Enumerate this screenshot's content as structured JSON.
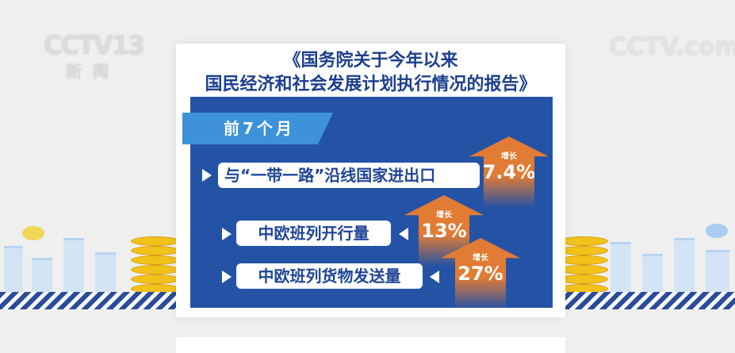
{
  "logos": {
    "left_channel": "CCTV13",
    "left_sub": "新闻",
    "right": "CCTV.com"
  },
  "title": {
    "line1": "《国务院关于今年以来",
    "line2": "国民经济和社会发展计划执行情况的报告》"
  },
  "tab": {
    "label": "前7个月"
  },
  "items": [
    {
      "label": "与“一带一路”沿线国家进出口",
      "growth_label": "增长",
      "value": "7.4%"
    },
    {
      "label": "中欧班列开行量",
      "growth_label": "增长",
      "value": "13%"
    },
    {
      "label": "中欧班列货物发送量",
      "growth_label": "增长",
      "value": "27%"
    }
  ],
  "colors": {
    "panel": "#2453a6",
    "tab": "#3d92da",
    "arrow": "#e27b33",
    "title": "#1c3f8e"
  }
}
